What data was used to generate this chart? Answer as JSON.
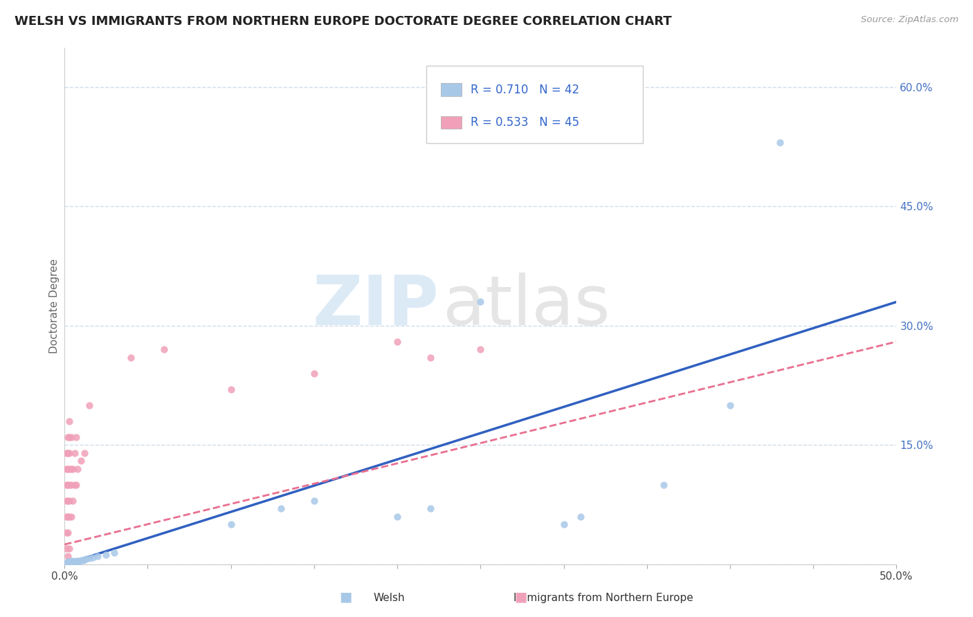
{
  "title": "WELSH VS IMMIGRANTS FROM NORTHERN EUROPE DOCTORATE DEGREE CORRELATION CHART",
  "source": "Source: ZipAtlas.com",
  "ylabel": "Doctorate Degree",
  "xlabel_welsh": "Welsh",
  "xlabel_immigrants": "Immigrants from Northern Europe",
  "xlim": [
    0.0,
    0.5
  ],
  "ylim": [
    0.0,
    0.65
  ],
  "ytick_values": [
    0.0,
    0.15,
    0.3,
    0.45,
    0.6
  ],
  "ytick_labels": [
    "",
    "15.0%",
    "30.0%",
    "45.0%",
    "60.0%"
  ],
  "xtick_values": [
    0.0,
    0.05,
    0.1,
    0.15,
    0.2,
    0.25,
    0.3,
    0.35,
    0.4,
    0.45,
    0.5
  ],
  "xtick_labels": [
    "0.0%",
    "",
    "",
    "",
    "",
    "",
    "",
    "",
    "",
    "",
    "50.0%"
  ],
  "r_welsh": 0.71,
  "n_welsh": 42,
  "r_immigrants": 0.533,
  "n_immigrants": 45,
  "welsh_color": "#a8c8e8",
  "immigrants_color": "#f0a0b8",
  "trendline_welsh_color": "#3060c0",
  "trendline_immigrants_color": "#e87090",
  "grid_color": "#d0dce8",
  "background_color": "#ffffff",
  "welsh_scatter": [
    [
      0.001,
      0.001
    ],
    [
      0.001,
      0.002
    ],
    [
      0.002,
      0.001
    ],
    [
      0.002,
      0.002
    ],
    [
      0.002,
      0.003
    ],
    [
      0.003,
      0.001
    ],
    [
      0.003,
      0.002
    ],
    [
      0.003,
      0.003
    ],
    [
      0.004,
      0.001
    ],
    [
      0.004,
      0.002
    ],
    [
      0.004,
      0.003
    ],
    [
      0.004,
      0.004
    ],
    [
      0.005,
      0.002
    ],
    [
      0.005,
      0.003
    ],
    [
      0.005,
      0.004
    ],
    [
      0.006,
      0.002
    ],
    [
      0.006,
      0.003
    ],
    [
      0.007,
      0.003
    ],
    [
      0.007,
      0.004
    ],
    [
      0.008,
      0.003
    ],
    [
      0.008,
      0.004
    ],
    [
      0.009,
      0.004
    ],
    [
      0.01,
      0.005
    ],
    [
      0.011,
      0.005
    ],
    [
      0.012,
      0.006
    ],
    [
      0.013,
      0.007
    ],
    [
      0.015,
      0.008
    ],
    [
      0.017,
      0.009
    ],
    [
      0.02,
      0.01
    ],
    [
      0.025,
      0.012
    ],
    [
      0.03,
      0.015
    ],
    [
      0.1,
      0.05
    ],
    [
      0.13,
      0.07
    ],
    [
      0.15,
      0.08
    ],
    [
      0.2,
      0.06
    ],
    [
      0.22,
      0.07
    ],
    [
      0.3,
      0.05
    ],
    [
      0.31,
      0.06
    ],
    [
      0.36,
      0.1
    ],
    [
      0.4,
      0.2
    ],
    [
      0.43,
      0.53
    ],
    [
      0.25,
      0.33
    ]
  ],
  "immigrants_scatter": [
    [
      0.001,
      0.001
    ],
    [
      0.001,
      0.02
    ],
    [
      0.001,
      0.04
    ],
    [
      0.001,
      0.06
    ],
    [
      0.001,
      0.08
    ],
    [
      0.001,
      0.1
    ],
    [
      0.001,
      0.12
    ],
    [
      0.001,
      0.14
    ],
    [
      0.002,
      0.01
    ],
    [
      0.002,
      0.04
    ],
    [
      0.002,
      0.06
    ],
    [
      0.002,
      0.08
    ],
    [
      0.002,
      0.1
    ],
    [
      0.002,
      0.12
    ],
    [
      0.002,
      0.14
    ],
    [
      0.002,
      0.16
    ],
    [
      0.003,
      0.02
    ],
    [
      0.003,
      0.06
    ],
    [
      0.003,
      0.08
    ],
    [
      0.003,
      0.1
    ],
    [
      0.003,
      0.12
    ],
    [
      0.003,
      0.14
    ],
    [
      0.003,
      0.16
    ],
    [
      0.003,
      0.18
    ],
    [
      0.004,
      0.06
    ],
    [
      0.004,
      0.1
    ],
    [
      0.004,
      0.12
    ],
    [
      0.004,
      0.16
    ],
    [
      0.005,
      0.08
    ],
    [
      0.005,
      0.12
    ],
    [
      0.006,
      0.1
    ],
    [
      0.006,
      0.14
    ],
    [
      0.007,
      0.1
    ],
    [
      0.007,
      0.16
    ],
    [
      0.008,
      0.12
    ],
    [
      0.01,
      0.13
    ],
    [
      0.012,
      0.14
    ],
    [
      0.015,
      0.2
    ],
    [
      0.04,
      0.26
    ],
    [
      0.06,
      0.27
    ],
    [
      0.1,
      0.22
    ],
    [
      0.15,
      0.24
    ],
    [
      0.2,
      0.28
    ],
    [
      0.22,
      0.26
    ],
    [
      0.25,
      0.27
    ]
  ],
  "welsh_trendline_x": [
    0.0,
    0.5
  ],
  "welsh_trendline_y": [
    0.0,
    0.33
  ],
  "immigrants_trendline_x": [
    0.0,
    0.5
  ],
  "immigrants_trendline_y": [
    0.025,
    0.28
  ]
}
